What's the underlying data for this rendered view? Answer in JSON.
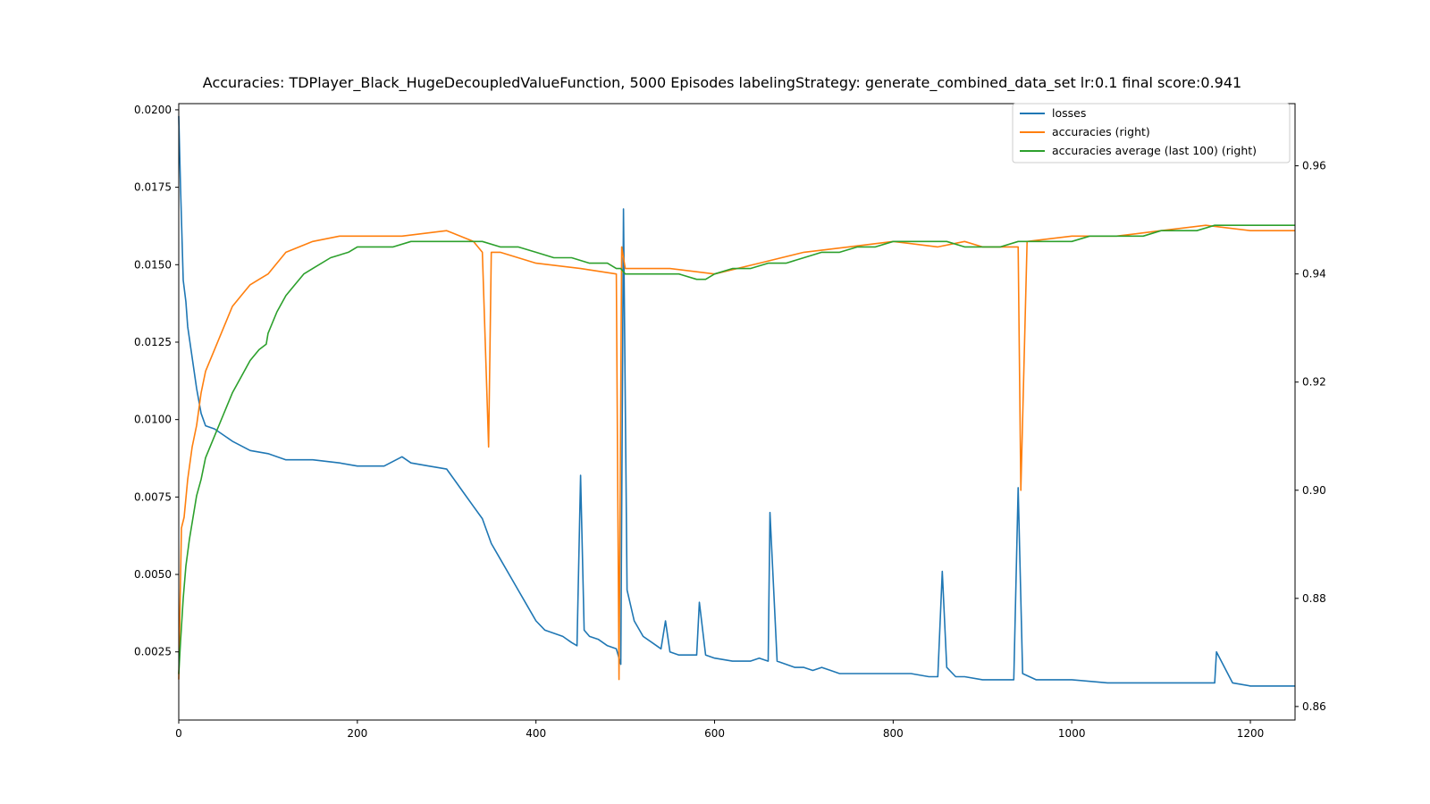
{
  "chart_data": {
    "type": "line",
    "title": "Accuracies: TDPlayer_Black_HugeDecoupledValueFunction, 5000 Episodes labelingStrategy: generate_combined_data_set lr:0.1 final score:0.941",
    "xlabel": "",
    "ylabel": "",
    "ylabel_right": "",
    "xlim": [
      0,
      1250
    ],
    "ylim": [
      0.0003,
      0.0202
    ],
    "ylim_right": [
      0.8575,
      0.9715
    ],
    "grid": false,
    "legend_position": "top-right",
    "x_ticks": [
      "0",
      "200",
      "400",
      "600",
      "800",
      "1000",
      "1200"
    ],
    "x_tick_values": [
      0,
      200,
      400,
      600,
      800,
      1000,
      1200
    ],
    "y_ticks_left": [
      "0.0025",
      "0.0050",
      "0.0075",
      "0.0100",
      "0.0125",
      "0.0150",
      "0.0175",
      "0.0200"
    ],
    "y_tick_values_left": [
      0.0025,
      0.005,
      0.0075,
      0.01,
      0.0125,
      0.015,
      0.0175,
      0.02
    ],
    "y_ticks_right": [
      "0.86",
      "0.88",
      "0.90",
      "0.92",
      "0.94",
      "0.96"
    ],
    "y_tick_values_right": [
      0.86,
      0.88,
      0.9,
      0.92,
      0.94,
      0.96
    ],
    "series": [
      {
        "name": "losses",
        "axis": "left",
        "color": "#1f77b4",
        "x": [
          0,
          2,
          5,
          8,
          10,
          15,
          20,
          25,
          30,
          40,
          50,
          60,
          80,
          100,
          120,
          150,
          180,
          200,
          230,
          250,
          260,
          280,
          300,
          310,
          320,
          330,
          340,
          350,
          360,
          370,
          380,
          390,
          400,
          410,
          420,
          430,
          440,
          446,
          450,
          454,
          460,
          470,
          480,
          490,
          495,
          498,
          502,
          510,
          520,
          530,
          540,
          545,
          550,
          560,
          580,
          583,
          590,
          600,
          620,
          640,
          650,
          660,
          662,
          670,
          680,
          690,
          700,
          710,
          720,
          730,
          740,
          760,
          780,
          800,
          820,
          840,
          850,
          855,
          860,
          870,
          880,
          900,
          920,
          935,
          940,
          945,
          960,
          980,
          1000,
          1040,
          1080,
          1100,
          1120,
          1140,
          1160,
          1162,
          1180,
          1200,
          1220,
          1250
        ],
        "values": [
          0.0198,
          0.0175,
          0.0145,
          0.0138,
          0.013,
          0.012,
          0.011,
          0.0102,
          0.0098,
          0.0097,
          0.0095,
          0.0093,
          0.009,
          0.0089,
          0.0087,
          0.0087,
          0.0086,
          0.0085,
          0.0085,
          0.0088,
          0.0086,
          0.0085,
          0.0084,
          0.008,
          0.0076,
          0.0072,
          0.0068,
          0.006,
          0.0055,
          0.005,
          0.0045,
          0.004,
          0.0035,
          0.0032,
          0.0031,
          0.003,
          0.0028,
          0.0027,
          0.0082,
          0.0032,
          0.003,
          0.0029,
          0.0027,
          0.0026,
          0.0021,
          0.0168,
          0.0045,
          0.0035,
          0.003,
          0.0028,
          0.0026,
          0.0035,
          0.0025,
          0.0024,
          0.0024,
          0.0041,
          0.0024,
          0.0023,
          0.0022,
          0.0022,
          0.0023,
          0.0022,
          0.007,
          0.0022,
          0.0021,
          0.002,
          0.002,
          0.0019,
          0.002,
          0.0019,
          0.0018,
          0.0018,
          0.0018,
          0.0018,
          0.0018,
          0.0017,
          0.0017,
          0.0051,
          0.002,
          0.0017,
          0.0017,
          0.0016,
          0.0016,
          0.0016,
          0.0078,
          0.0018,
          0.0016,
          0.0016,
          0.0016,
          0.0015,
          0.0015,
          0.0015,
          0.0015,
          0.0015,
          0.0015,
          0.0025,
          0.0015,
          0.0014,
          0.0014,
          0.0014
        ]
      },
      {
        "name": "accuracies (right)",
        "axis": "right",
        "color": "#ff7f0e",
        "x": [
          0,
          3,
          6,
          10,
          15,
          20,
          25,
          30,
          40,
          50,
          60,
          70,
          80,
          90,
          100,
          120,
          150,
          180,
          200,
          250,
          300,
          330,
          340,
          347,
          350,
          360,
          400,
          450,
          490,
          493,
          496,
          500,
          550,
          600,
          650,
          700,
          750,
          800,
          850,
          880,
          900,
          940,
          943,
          950,
          1000,
          1050,
          1100,
          1150,
          1200,
          1250
        ],
        "values": [
          0.865,
          0.893,
          0.895,
          0.902,
          0.908,
          0.912,
          0.918,
          0.922,
          0.926,
          0.93,
          0.934,
          0.936,
          0.938,
          0.939,
          0.94,
          0.944,
          0.946,
          0.947,
          0.947,
          0.947,
          0.948,
          0.946,
          0.944,
          0.908,
          0.944,
          0.944,
          0.942,
          0.941,
          0.94,
          0.865,
          0.945,
          0.941,
          0.941,
          0.94,
          0.942,
          0.944,
          0.945,
          0.946,
          0.945,
          0.946,
          0.945,
          0.945,
          0.9,
          0.946,
          0.947,
          0.947,
          0.948,
          0.949,
          0.948,
          0.948
        ]
      },
      {
        "name": "accuracies average (last 100) (right)",
        "axis": "right",
        "color": "#2ca02c",
        "x": [
          0,
          2,
          5,
          8,
          12,
          16,
          20,
          25,
          30,
          40,
          50,
          60,
          70,
          80,
          90,
          98,
          100,
          110,
          120,
          130,
          140,
          150,
          170,
          190,
          200,
          220,
          240,
          260,
          280,
          300,
          320,
          330,
          340,
          360,
          380,
          400,
          420,
          440,
          460,
          480,
          490,
          495,
          500,
          520,
          540,
          560,
          580,
          590,
          600,
          620,
          640,
          660,
          680,
          700,
          720,
          740,
          760,
          780,
          800,
          820,
          840,
          860,
          880,
          900,
          920,
          940,
          960,
          980,
          1000,
          1020,
          1040,
          1060,
          1080,
          1100,
          1120,
          1140,
          1160,
          1180,
          1200,
          1220,
          1250
        ],
        "values": [
          0.866,
          0.872,
          0.88,
          0.886,
          0.891,
          0.895,
          0.899,
          0.902,
          0.906,
          0.91,
          0.914,
          0.918,
          0.921,
          0.924,
          0.926,
          0.927,
          0.929,
          0.933,
          0.936,
          0.938,
          0.94,
          0.941,
          0.943,
          0.944,
          0.945,
          0.945,
          0.945,
          0.946,
          0.946,
          0.946,
          0.946,
          0.946,
          0.946,
          0.945,
          0.945,
          0.944,
          0.943,
          0.943,
          0.942,
          0.942,
          0.941,
          0.941,
          0.94,
          0.94,
          0.94,
          0.94,
          0.939,
          0.939,
          0.94,
          0.941,
          0.941,
          0.942,
          0.942,
          0.943,
          0.944,
          0.944,
          0.945,
          0.945,
          0.946,
          0.946,
          0.946,
          0.946,
          0.945,
          0.945,
          0.945,
          0.946,
          0.946,
          0.946,
          0.946,
          0.947,
          0.947,
          0.947,
          0.947,
          0.948,
          0.948,
          0.948,
          0.949,
          0.949,
          0.949,
          0.949,
          0.949
        ]
      }
    ]
  }
}
